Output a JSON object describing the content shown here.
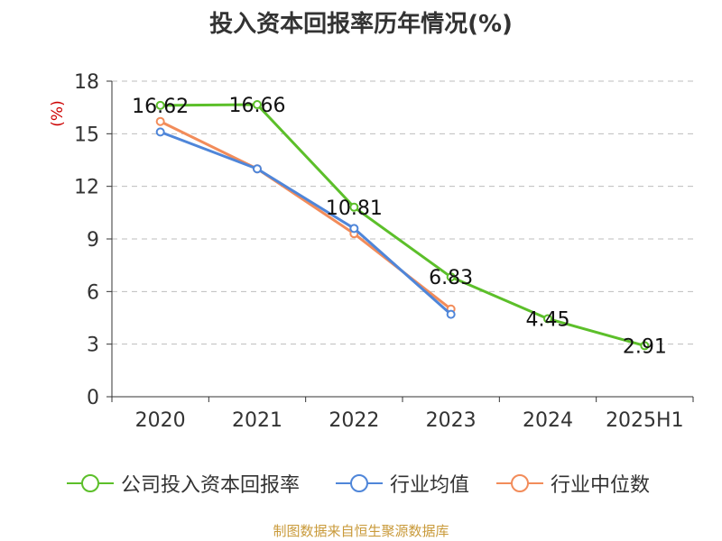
{
  "title": "投入资本回报率历年情况(%)",
  "source": "制图数据来自恒生聚源数据库",
  "colors": {
    "company": "#5cbf2a",
    "avg": "#4f86d9",
    "median": "#f28c5a",
    "unit": "#cc0000",
    "source": "#c99a3a"
  },
  "chart_data": {
    "type": "line",
    "title": "投入资本回报率历年情况(%)",
    "ylabel": "(%)",
    "xlabel": "",
    "categories": [
      "2020",
      "2021",
      "2022",
      "2023",
      "2024",
      "2025H1"
    ],
    "ylim": [
      0,
      18
    ],
    "yticks": [
      0,
      3,
      6,
      9,
      12,
      15,
      18
    ],
    "grid": true,
    "legend_position": "bottom",
    "series": [
      {
        "name": "公司投入资本回报率",
        "color": "#5cbf2a",
        "values": [
          16.62,
          16.66,
          10.81,
          6.83,
          4.45,
          2.91
        ],
        "labels": [
          "16.62",
          "16.66",
          "10.81",
          "6.83",
          "4.45",
          "2.91"
        ]
      },
      {
        "name": "行业均值",
        "color": "#4f86d9",
        "values": [
          15.1,
          13.0,
          9.6,
          4.7,
          null,
          null
        ]
      },
      {
        "name": "行业中位数",
        "color": "#f28c5a",
        "values": [
          15.7,
          13.0,
          9.3,
          5.0,
          null,
          null
        ]
      }
    ]
  }
}
